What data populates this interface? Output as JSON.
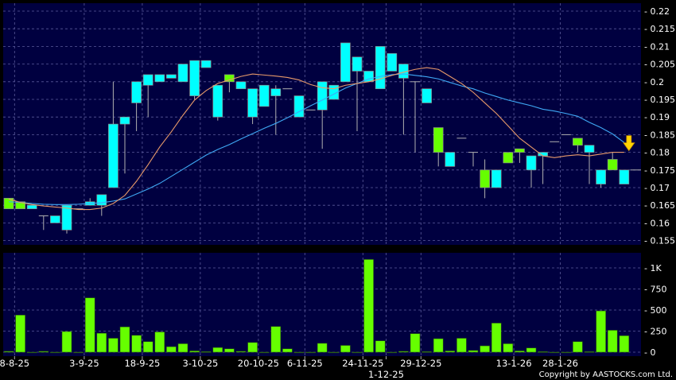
{
  "chart_data": [
    {
      "type": "candlestick",
      "panel": "price",
      "ylim": [
        0.155,
        0.22
      ],
      "y_ticks": [
        "0.22",
        "0.215",
        "0.21",
        "0.205",
        "0.2",
        "0.195",
        "0.19",
        "0.185",
        "0.18",
        "0.175",
        "0.17",
        "0.165",
        "0.16",
        "0.155"
      ],
      "grid": true,
      "colors": {
        "up": "#00ffff",
        "down": "#66ff00",
        "wick": "#b0b0b0",
        "ma_short": "#e89a6a",
        "ma_long": "#3fa9f5",
        "background": "#000040"
      },
      "candles_ohlc": [
        [
          0.167,
          0.167,
          0.164,
          0.164
        ],
        [
          0.166,
          0.166,
          0.164,
          0.164
        ],
        [
          0.164,
          0.165,
          0.164,
          0.165
        ],
        [
          0.162,
          0.162,
          0.158,
          0.162
        ],
        [
          0.16,
          0.162,
          0.16,
          0.162
        ],
        [
          0.158,
          0.165,
          0.157,
          0.165
        ],
        [
          0.164,
          0.164,
          0.164,
          0.164
        ],
        [
          0.165,
          0.167,
          0.165,
          0.166
        ],
        [
          0.165,
          0.168,
          0.162,
          0.168
        ],
        [
          0.17,
          0.2,
          0.17,
          0.188
        ],
        [
          0.188,
          0.19,
          0.174,
          0.19
        ],
        [
          0.194,
          0.2,
          0.186,
          0.2
        ],
        [
          0.199,
          0.202,
          0.19,
          0.202
        ],
        [
          0.2,
          0.202,
          0.2,
          0.202
        ],
        [
          0.201,
          0.202,
          0.201,
          0.202
        ],
        [
          0.2,
          0.205,
          0.2,
          0.205
        ],
        [
          0.196,
          0.206,
          0.195,
          0.206
        ],
        [
          0.204,
          0.206,
          0.204,
          0.206
        ],
        [
          0.19,
          0.199,
          0.189,
          0.199
        ],
        [
          0.202,
          0.202,
          0.197,
          0.2
        ],
        [
          0.198,
          0.2,
          0.198,
          0.2
        ],
        [
          0.19,
          0.198,
          0.188,
          0.198
        ],
        [
          0.193,
          0.199,
          0.193,
          0.199
        ],
        [
          0.196,
          0.199,
          0.185,
          0.198
        ],
        [
          0.198,
          0.198,
          0.198,
          0.198
        ],
        [
          0.19,
          0.196,
          0.19,
          0.196
        ],
        [
          0.192,
          0.192,
          0.192,
          0.192
        ],
        [
          0.192,
          0.2,
          0.181,
          0.2
        ],
        [
          0.195,
          0.199,
          0.195,
          0.199
        ],
        [
          0.2,
          0.211,
          0.2,
          0.211
        ],
        [
          0.203,
          0.207,
          0.186,
          0.207
        ],
        [
          0.2,
          0.203,
          0.2,
          0.203
        ],
        [
          0.198,
          0.21,
          0.198,
          0.21
        ],
        [
          0.203,
          0.208,
          0.203,
          0.208
        ],
        [
          0.201,
          0.205,
          0.185,
          0.205
        ],
        [
          0.2,
          0.2,
          0.18,
          0.2
        ],
        [
          0.194,
          0.198,
          0.194,
          0.198
        ],
        [
          0.187,
          0.187,
          0.176,
          0.18
        ],
        [
          0.176,
          0.18,
          0.176,
          0.18
        ],
        [
          0.184,
          0.184,
          0.184,
          0.184
        ],
        [
          0.18,
          0.18,
          0.176,
          0.18
        ],
        [
          0.175,
          0.178,
          0.167,
          0.17
        ],
        [
          0.17,
          0.175,
          0.17,
          0.175
        ],
        [
          0.18,
          0.18,
          0.177,
          0.177
        ],
        [
          0.181,
          0.181,
          0.177,
          0.18
        ],
        [
          0.175,
          0.179,
          0.17,
          0.179
        ],
        [
          0.179,
          0.18,
          0.171,
          0.18
        ],
        [
          0.183,
          0.183,
          0.183,
          0.183
        ],
        [
          0.185,
          0.185,
          0.185,
          0.185
        ],
        [
          0.184,
          0.184,
          0.18,
          0.182
        ],
        [
          0.18,
          0.182,
          0.171,
          0.182
        ],
        [
          0.171,
          0.175,
          0.17,
          0.175
        ],
        [
          0.178,
          0.18,
          0.175,
          0.175
        ],
        [
          0.171,
          0.175,
          0.171,
          0.175
        ]
      ],
      "ma_short": [
        0.1668,
        0.1658,
        0.1652,
        0.1648,
        0.1645,
        0.1642,
        0.1638,
        0.1638,
        0.1642,
        0.1655,
        0.1678,
        0.1718,
        0.1765,
        0.1815,
        0.1858,
        0.1905,
        0.1948,
        0.1975,
        0.1995,
        0.2005,
        0.2015,
        0.2022,
        0.2019,
        0.2016,
        0.2012,
        0.2005,
        0.1992,
        0.1983,
        0.198,
        0.199,
        0.1995,
        0.2,
        0.2008,
        0.2018,
        0.2027,
        0.2035,
        0.204,
        0.2035,
        0.2015,
        0.1995,
        0.197,
        0.194,
        0.191,
        0.1875,
        0.184,
        0.1815,
        0.179,
        0.1785,
        0.179,
        0.1793,
        0.179,
        0.1795,
        0.18,
        0.18
      ],
      "ma_long": [
        0.166,
        0.1658,
        0.1655,
        0.1653,
        0.1652,
        0.1652,
        0.1653,
        0.1655,
        0.1657,
        0.1662,
        0.1668,
        0.1682,
        0.1696,
        0.1712,
        0.1732,
        0.1752,
        0.1772,
        0.1792,
        0.1808,
        0.1822,
        0.1838,
        0.1853,
        0.1868,
        0.1882,
        0.1898,
        0.1915,
        0.1932,
        0.1948,
        0.1965,
        0.1982,
        0.1995,
        0.2008,
        0.2015,
        0.202,
        0.2022,
        0.2018,
        0.2014,
        0.2008,
        0.1998,
        0.1988,
        0.198,
        0.1968,
        0.1958,
        0.1948,
        0.194,
        0.1932,
        0.1922,
        0.1917,
        0.191,
        0.1902,
        0.1885,
        0.187,
        0.1852,
        0.1828
      ],
      "last_price": 0.175,
      "annotation": {
        "icon": "arrow-down-icon",
        "color": "#ffd400",
        "candle_index": 53,
        "price": 0.18
      }
    },
    {
      "type": "bar",
      "panel": "volume",
      "ylim": [
        0,
        1150
      ],
      "y_ticks": [
        {
          "value": 1000,
          "label": "1K"
        },
        {
          "value": 750,
          "label": "750"
        },
        {
          "value": 500,
          "label": "500"
        },
        {
          "value": 250,
          "label": "250"
        },
        {
          "value": 0,
          "label": "0"
        }
      ],
      "color": "#66ff00",
      "values": [
        10,
        440,
        0,
        10,
        0,
        245,
        0,
        645,
        225,
        165,
        300,
        200,
        125,
        240,
        65,
        100,
        15,
        5,
        55,
        40,
        10,
        115,
        0,
        305,
        40,
        0,
        0,
        105,
        0,
        80,
        0,
        1100,
        135,
        0,
        10,
        220,
        5,
        160,
        15,
        165,
        20,
        75,
        345,
        100,
        15,
        50,
        5,
        0,
        0,
        125,
        5,
        490,
        260,
        195
      ]
    }
  ],
  "x_ticks": [
    {
      "label": "8-8-25",
      "candle_index": 1
    },
    {
      "label": "3-9-25",
      "candle_index": 7
    },
    {
      "label": "18-9-25",
      "candle_index": 12
    },
    {
      "label": "3-10-25",
      "candle_index": 17
    },
    {
      "label": "20-10-25",
      "candle_index": 22
    },
    {
      "label": "6-11-25",
      "candle_index": 26
    },
    {
      "label": "24-11-25",
      "candle_index": 31
    },
    {
      "label": "1-12-25",
      "candle_index": 33
    },
    {
      "label": "29-12-25",
      "candle_index": 36
    },
    {
      "label": "13-1-26",
      "candle_index": 44
    },
    {
      "label": "28-1-26",
      "candle_index": 48
    }
  ],
  "copyright": "Copyright by AASTOCKS.com Ltd."
}
